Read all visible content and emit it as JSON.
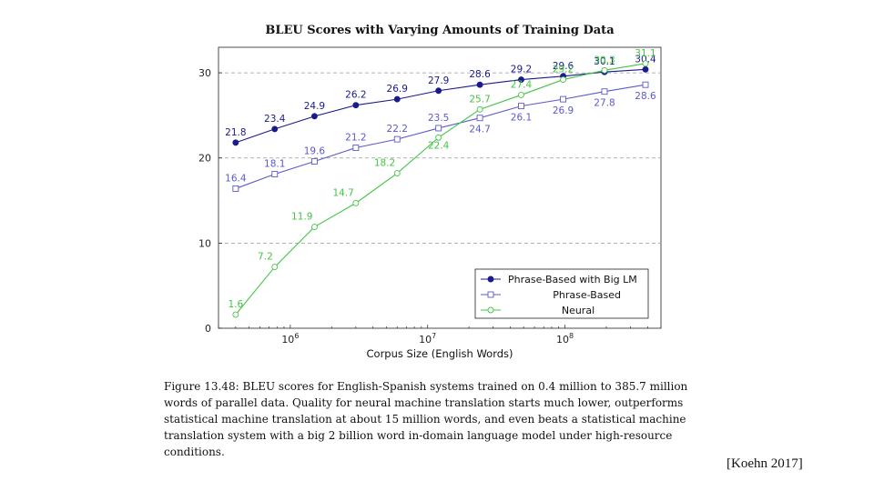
{
  "chart_data": {
    "type": "line",
    "title": "BLEU Scores with Varying Amounts of Training Data",
    "xlabel": "Corpus Size (English Words)",
    "ylabel": "",
    "xscale": "log",
    "xlim": [
      300000,
      500000000
    ],
    "ylim": [
      0,
      33
    ],
    "yticks": [
      0,
      10,
      20,
      30
    ],
    "xticks": [
      {
        "value": 1000000,
        "base": "10",
        "exp": "6"
      },
      {
        "value": 10000000,
        "base": "10",
        "exp": "7"
      },
      {
        "value": 100000000,
        "base": "10",
        "exp": "8"
      }
    ],
    "grid": "horizontal-dashed",
    "legend_position": "bottom-right",
    "series": [
      {
        "name": "Phrase-Based with Big LM",
        "color": "#1a1a8c",
        "marker": "filled-circle",
        "legend_align": "left",
        "x": [
          400000,
          770000,
          1500000,
          3000000,
          6000000,
          12000000,
          24000000,
          48000000,
          97000000,
          194000000,
          385700000
        ],
        "values": [
          21.8,
          23.4,
          24.9,
          26.2,
          26.9,
          27.9,
          28.6,
          29.2,
          29.6,
          30.1,
          30.4
        ],
        "labels": [
          "21.8",
          "23.4",
          "24.9",
          "26.2",
          "26.9",
          "27.9",
          "28.6",
          "29.2",
          "29.6",
          "30.1",
          "30.4"
        ]
      },
      {
        "name": "Phrase-Based",
        "color": "#5a5acc",
        "marker": "open-square",
        "legend_align": "right",
        "x": [
          400000,
          770000,
          1500000,
          3000000,
          6000000,
          12000000,
          24000000,
          48000000,
          97000000,
          194000000,
          385700000
        ],
        "values": [
          16.4,
          18.1,
          19.6,
          21.2,
          22.2,
          23.5,
          24.7,
          26.1,
          26.9,
          27.8,
          28.6
        ],
        "labels": [
          "16.4",
          "18.1",
          "19.6",
          "21.2",
          "22.2",
          "23.5",
          "24.7",
          "26.1",
          "26.9",
          "27.8",
          "28.6"
        ]
      },
      {
        "name": "Neural",
        "color": "#45c445",
        "marker": "open-circle",
        "legend_align": "center",
        "x": [
          400000,
          770000,
          1500000,
          3000000,
          6000000,
          12000000,
          24000000,
          48000000,
          97000000,
          194000000,
          385700000
        ],
        "values": [
          1.6,
          7.2,
          11.9,
          14.7,
          18.2,
          22.4,
          25.7,
          27.4,
          29.2,
          30.3,
          31.1
        ],
        "labels": [
          "1.6",
          "7.2",
          "11.9",
          "14.7",
          "18.2",
          "22.4",
          "25.7",
          "27.4",
          "29.2",
          "30.3",
          "31.1"
        ]
      }
    ]
  },
  "caption": "Figure 13.48: BLEU scores for English-Spanish systems trained on 0.4 million to 385.7 million words of parallel data. Quality for neural machine translation starts much lower, outperforms statistical machine translation at about 15 million words, and even beats a statistical machine translation system with a big 2 billion word in-domain language model under high-resource conditions.",
  "citation": "[Koehn 2017]"
}
